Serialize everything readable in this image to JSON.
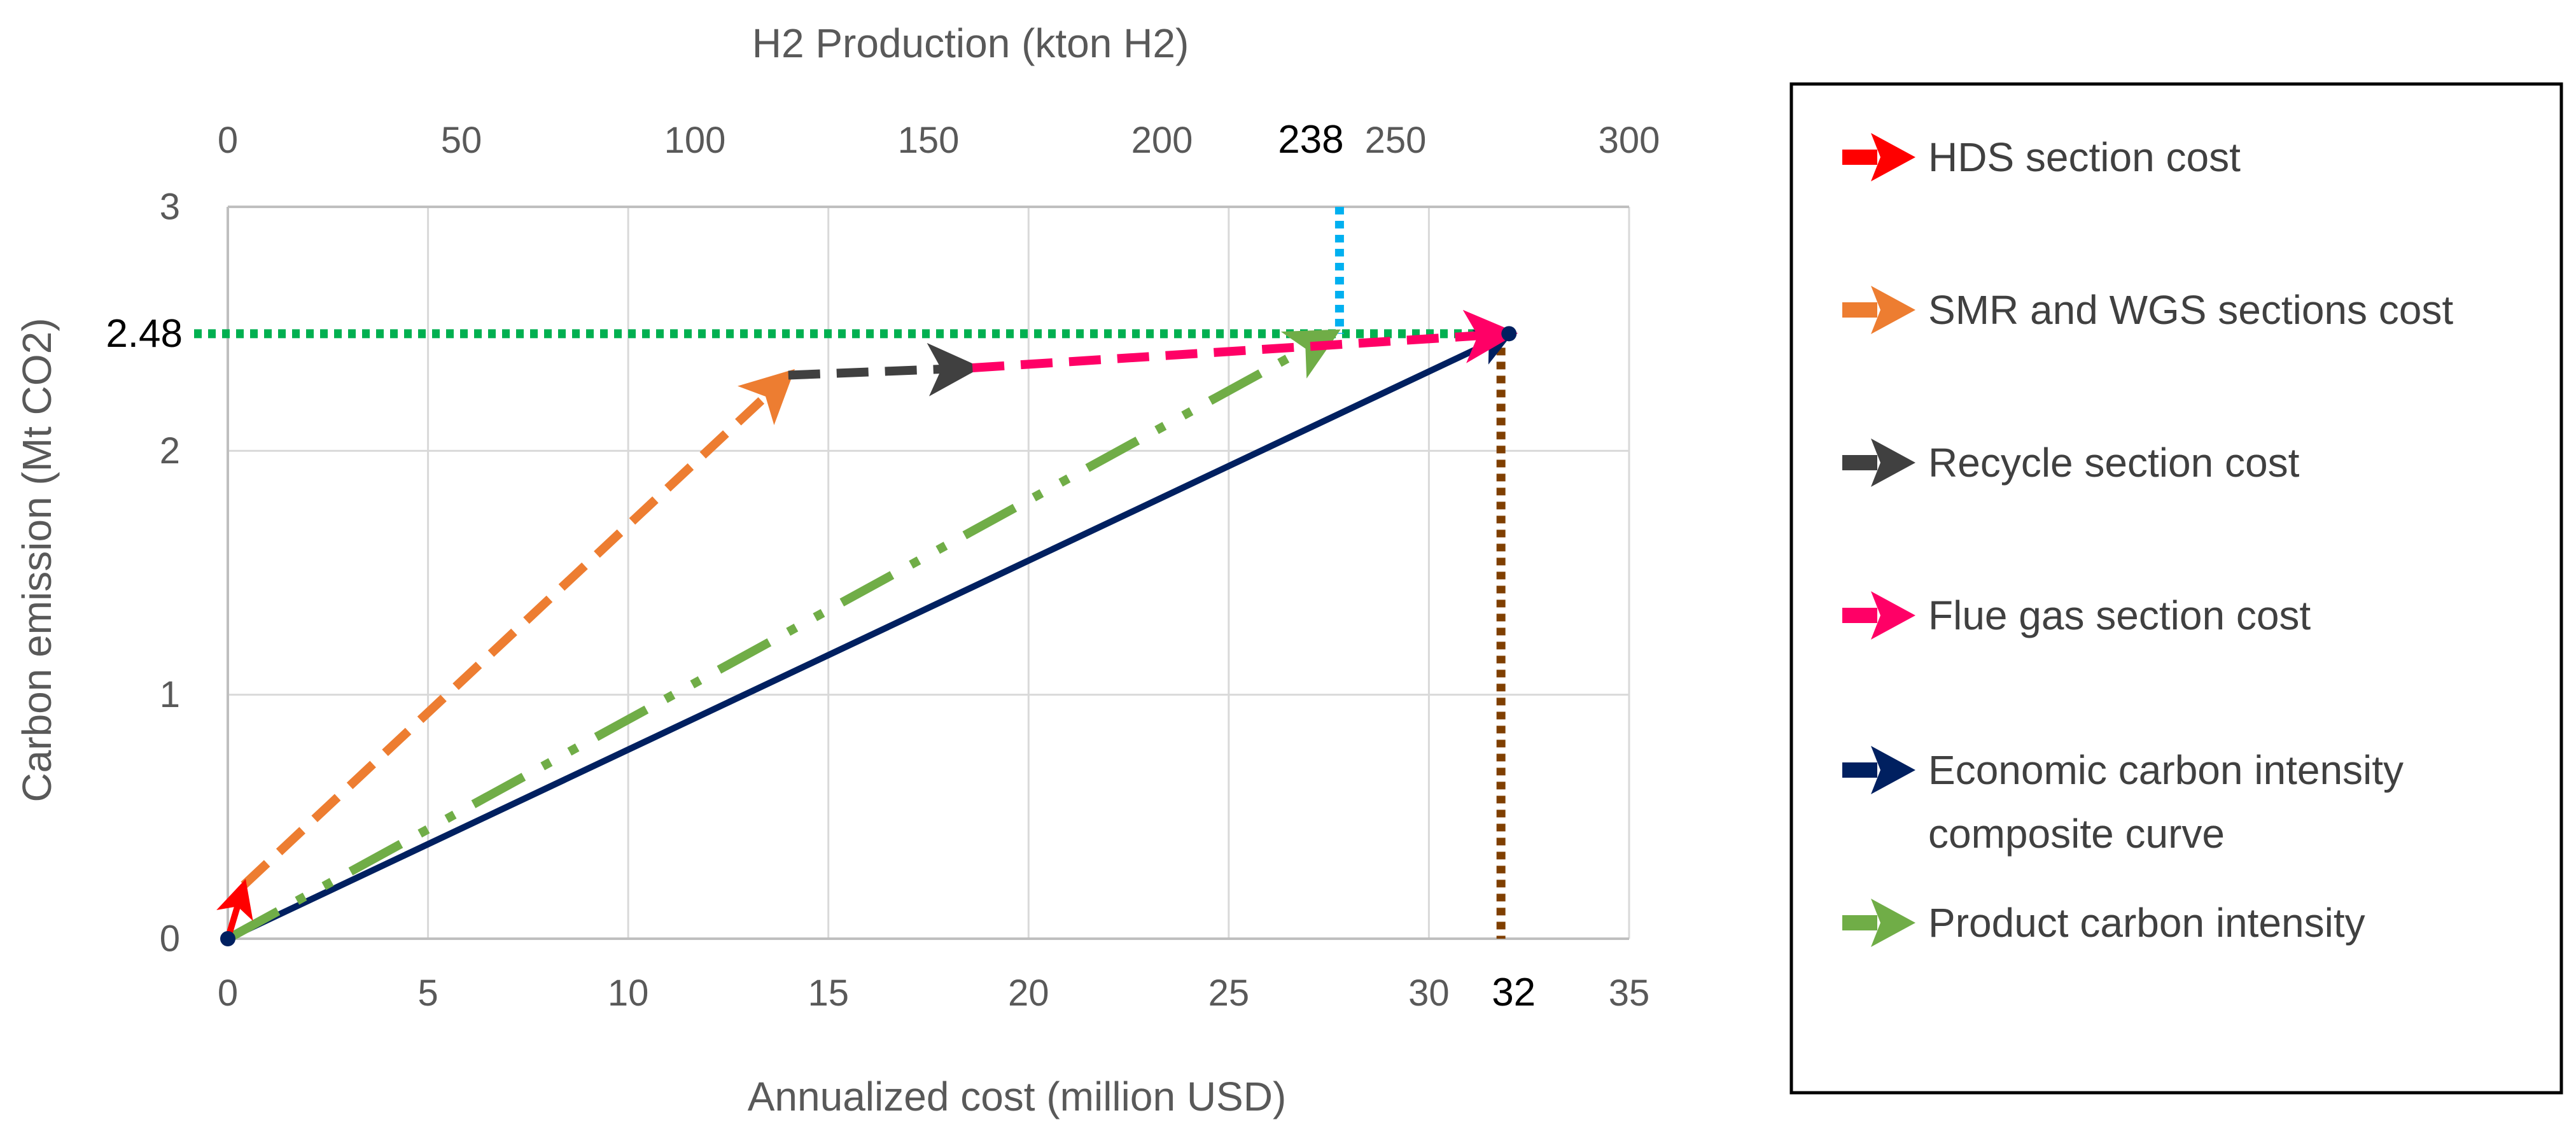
{
  "chart_data": {
    "type": "line",
    "xlabel": "Annualized cost (million USD)",
    "ylabel": "Carbon emission (Mt CO2)",
    "x2label": "H2 Production (kton H2)",
    "xlim": [
      0,
      35
    ],
    "ylim": [
      0,
      3
    ],
    "x2lim": [
      0,
      300
    ],
    "xticks": [
      0,
      5,
      10,
      15,
      20,
      25,
      30,
      35
    ],
    "yticks": [
      0,
      1,
      2,
      3
    ],
    "x2ticks": [
      0,
      50,
      100,
      150,
      200,
      250,
      300
    ],
    "grid": true,
    "legend_position": "right",
    "series": [
      {
        "name": "HDS section cost",
        "color": "#ff0000",
        "style": "solid",
        "x": [
          0,
          0.4
        ],
        "y": [
          0,
          0.22
        ]
      },
      {
        "name": "SMR and WGS sections cost",
        "color": "#ed7d31",
        "style": "dash",
        "x": [
          0.4,
          14.0
        ],
        "y": [
          0.22,
          2.31
        ]
      },
      {
        "name": "Recycle section cost",
        "color": "#404040",
        "style": "dash",
        "x": [
          14.0,
          18.6
        ],
        "y": [
          2.31,
          2.34
        ]
      },
      {
        "name": "Flue gas section cost",
        "color": "#ff0066",
        "style": "dash",
        "x": [
          18.6,
          32.0
        ],
        "y": [
          2.34,
          2.48
        ]
      },
      {
        "name": "Economic carbon intensity composite curve",
        "color": "#002060",
        "style": "solid",
        "x": [
          0,
          32.0
        ],
        "y": [
          0,
          2.48
        ]
      },
      {
        "name": "Product carbon intensity",
        "color": "#70ad47",
        "style": "dashdotdot",
        "x": [
          0,
          27.6
        ],
        "y": [
          0,
          2.48
        ]
      }
    ],
    "annotations": {
      "y_value_label": "2.48",
      "y_value": 2.48,
      "x_value_label": "32",
      "x_value": 31.8,
      "x2_value_label": "238",
      "x2_value": 238,
      "y_guide_color": "#00b050",
      "x_guide_color": "#7f3f00",
      "x2_guide_color": "#00b0f0"
    }
  }
}
